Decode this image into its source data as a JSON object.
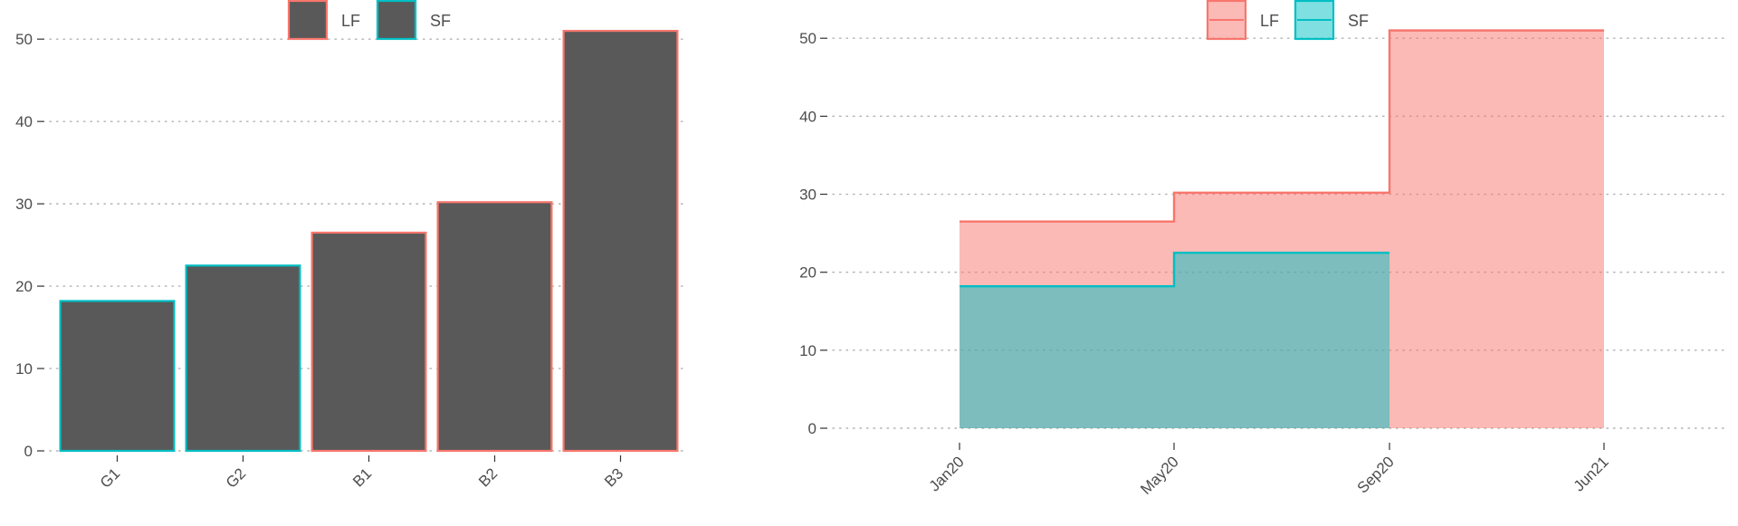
{
  "chart_data": [
    {
      "type": "bar",
      "legend": {
        "position": "top",
        "entries": [
          {
            "label": "LF",
            "color": "#F8766D"
          },
          {
            "label": "SF",
            "color": "#00BFC4"
          }
        ]
      },
      "bar_fill": "#595959",
      "categories": [
        "G1",
        "G2",
        "B1",
        "B2",
        "B3"
      ],
      "values": [
        18.2,
        22.5,
        26.5,
        30.2,
        51.0
      ],
      "groups": [
        "SF",
        "SF",
        "LF",
        "LF",
        "LF"
      ],
      "ylim": [
        0,
        52
      ],
      "yticks": [
        "0",
        "10",
        "20",
        "30",
        "40",
        "50"
      ],
      "grid": "horizontal dotted"
    },
    {
      "type": "area",
      "step": true,
      "legend": {
        "position": "top",
        "entries": [
          {
            "label": "LF",
            "color": "#F8766D",
            "fill": "#F8766D"
          },
          {
            "label": "SF",
            "color": "#00BFC4",
            "fill": "#00BFC4"
          }
        ]
      },
      "xticks": [
        "Jan20",
        "May20",
        "Sep20",
        "Jun21"
      ],
      "ylim": [
        0,
        52
      ],
      "yticks": [
        "0",
        "10",
        "20",
        "30",
        "40",
        "50"
      ],
      "series": [
        {
          "name": "LF",
          "x": [
            "Jan20",
            "May20",
            "Sep20",
            "Jun21"
          ],
          "values": [
            26.5,
            30.2,
            51.0,
            51.0
          ]
        },
        {
          "name": "SF",
          "x": [
            "Jan20",
            "May20",
            "Sep20"
          ],
          "values": [
            18.2,
            22.5,
            22.5
          ]
        }
      ],
      "grid": "horizontal dotted"
    }
  ]
}
